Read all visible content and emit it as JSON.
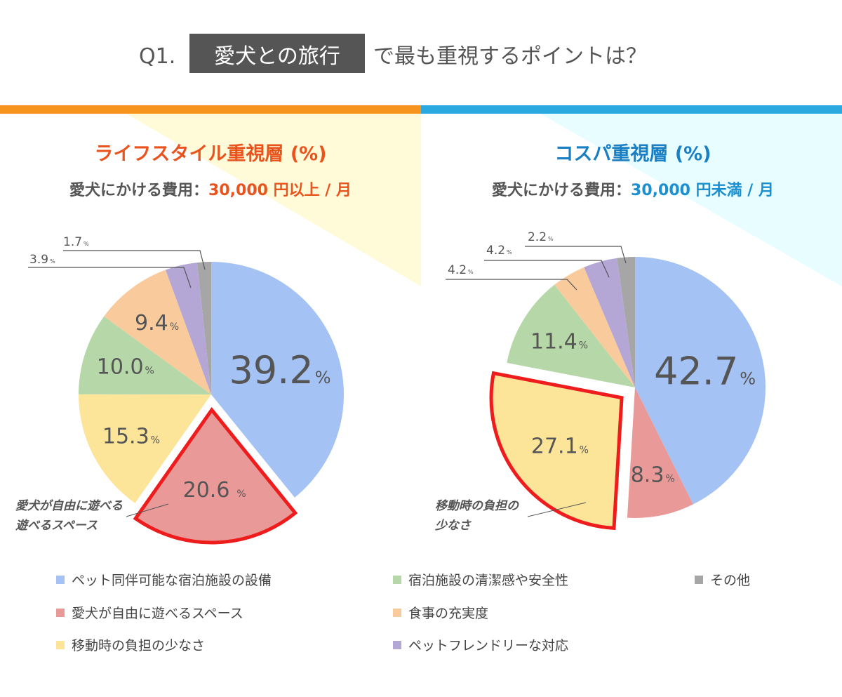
{
  "title": {
    "prefix": "Q1.",
    "highlight": "愛犬との旅行",
    "suffix": "で最も重視するポイントは？"
  },
  "colors": {
    "left_accent": "#f7941d",
    "right_accent": "#29a9e0",
    "left_title": "#e8531e",
    "right_title": "#1b7fc4",
    "highlight_outline": "#ee1c1c",
    "slices": [
      "#a4c2f4",
      "#ea9999",
      "#fce599",
      "#b6d7a8",
      "#f9cb9c",
      "#b4a7d6",
      "#a6a6a6"
    ]
  },
  "chart_data": [
    {
      "type": "pie",
      "title": "ライフスタイル重視層 (%)",
      "subtitle_label": "愛犬にかける費用：",
      "subtitle_value": "30,000 円以上 / 月",
      "categories": [
        "ペット同伴可能な宿泊施設の設備",
        "愛犬が自由に遊べるスペース",
        "移動時の負担の少なさ",
        "宿泊施設の清潔感や安全性",
        "食事の充実度",
        "ペットフレンドリーな対応",
        "その他"
      ],
      "values": [
        39.2,
        20.6,
        15.3,
        10.0,
        9.4,
        3.9,
        1.7
      ],
      "value_labels": [
        "39.2",
        "20.6",
        "15.3",
        "10.0",
        "9.4",
        "3.9",
        "1.7"
      ],
      "unit": "%",
      "highlighted_index": 1,
      "callout": [
        "愛犬が自由に遊べる",
        "遊べるスペース"
      ]
    },
    {
      "type": "pie",
      "title": "コスパ重視層 (%)",
      "subtitle_label": "愛犬にかける費用：",
      "subtitle_value": "30,000 円未満 / 月",
      "categories": [
        "ペット同伴可能な宿泊施設の設備",
        "愛犬が自由に遊べるスペース",
        "移動時の負担の少なさ",
        "宿泊施設の清潔感や安全性",
        "食事の充実度",
        "ペットフレンドリーな対応",
        "その他"
      ],
      "values": [
        42.7,
        8.3,
        27.1,
        11.4,
        4.2,
        4.2,
        2.2
      ],
      "value_labels": [
        "42.7",
        "8.3",
        "27.1",
        "11.4",
        "4.2",
        "4.2",
        "2.2"
      ],
      "unit": "%",
      "highlighted_index": 2,
      "callout": [
        "移動時の負担の",
        "少なさ"
      ]
    }
  ],
  "legend": {
    "placement": "bottom",
    "items": [
      "ペット同伴可能な宿泊施設の設備",
      "愛犬が自由に遊べるスペース",
      "移動時の負担の少なさ",
      "宿泊施設の清潔感や安全性",
      "食事の充実度",
      "ペットフレンドリーな対応",
      "その他"
    ]
  }
}
